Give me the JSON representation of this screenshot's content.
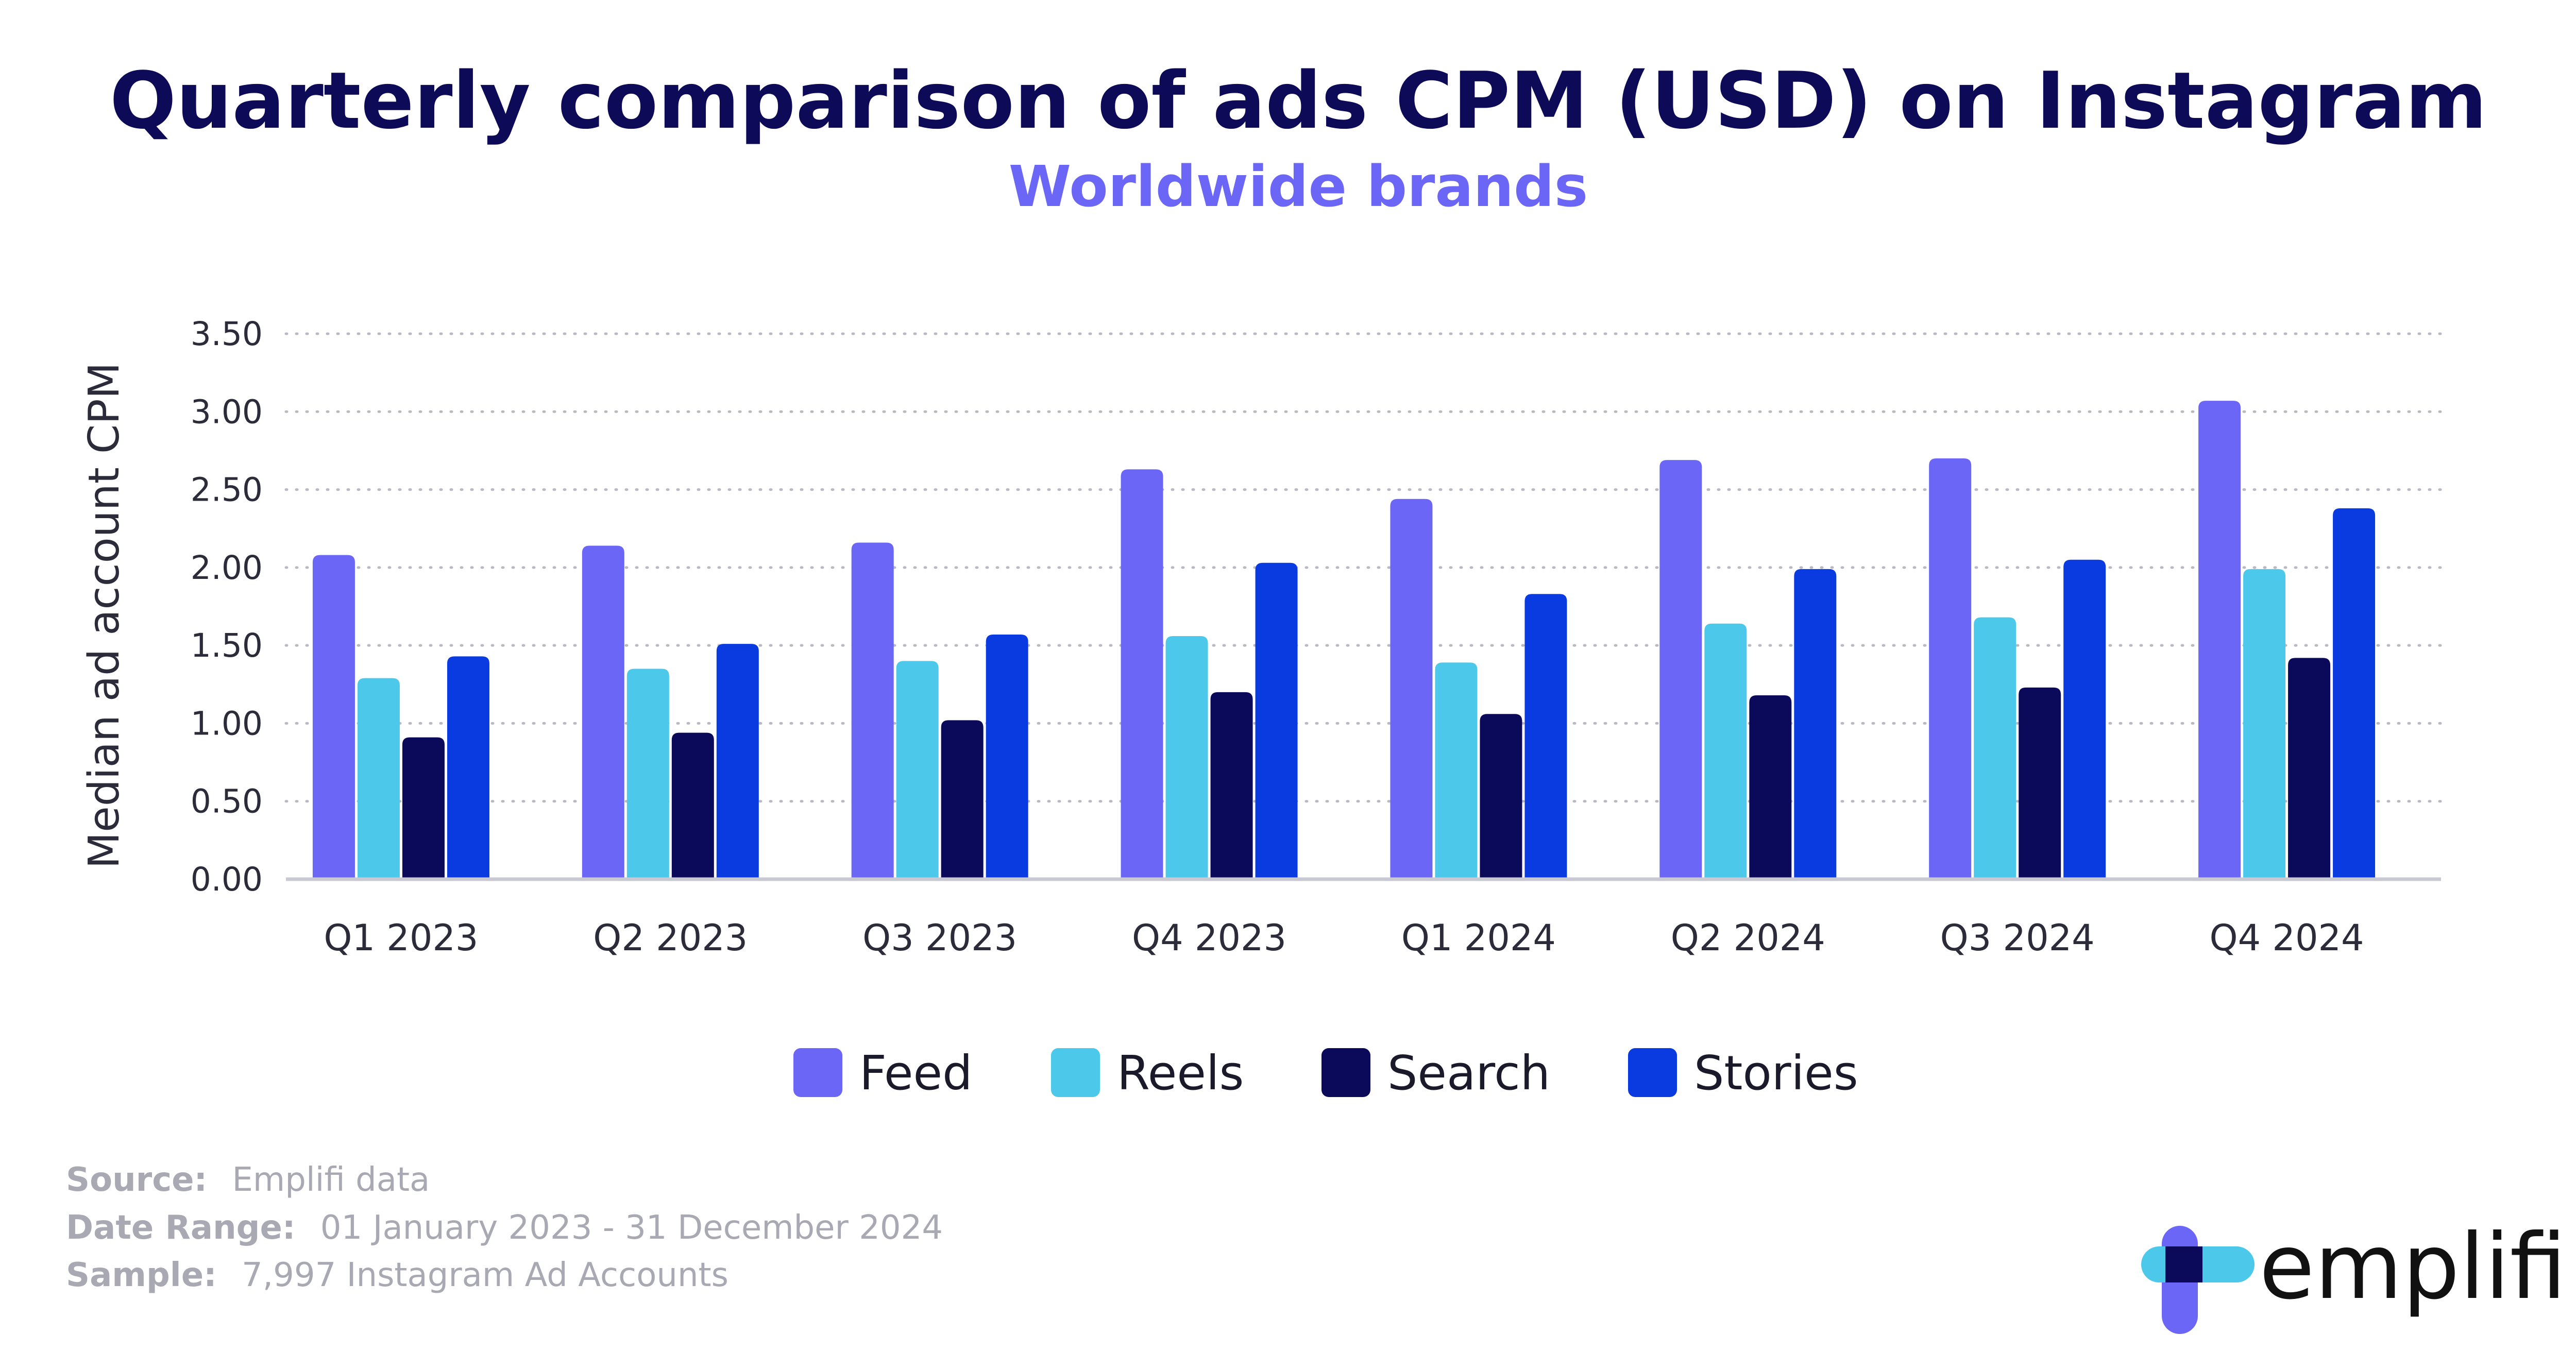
{
  "chart_data": {
    "type": "bar",
    "title": "Quarterly comparison of ads CPM (USD) on Instagram",
    "subtitle": "Worldwide brands",
    "xlabel": "",
    "ylabel": "Median ad account CPM",
    "ylim": [
      0,
      3.5
    ],
    "yticks": [
      "0.00",
      "0.50",
      "1.00",
      "1.50",
      "2.00",
      "2.50",
      "3.00",
      "3.50"
    ],
    "grid": true,
    "legend_position": "bottom",
    "categories": [
      "Q1 2023",
      "Q2 2023",
      "Q3 2023",
      "Q4 2023",
      "Q1 2024",
      "Q2 2024",
      "Q3 2024",
      "Q4 2024"
    ],
    "series": [
      {
        "name": "Feed",
        "color": "#6b66f6",
        "values": [
          2.08,
          2.14,
          2.16,
          2.63,
          2.44,
          2.69,
          2.7,
          3.07
        ]
      },
      {
        "name": "Reels",
        "color": "#4bc8ea",
        "values": [
          1.29,
          1.35,
          1.4,
          1.56,
          1.39,
          1.64,
          1.68,
          1.99
        ]
      },
      {
        "name": "Search",
        "color": "#0b0a5a",
        "values": [
          0.91,
          0.94,
          1.02,
          1.2,
          1.06,
          1.18,
          1.23,
          1.42
        ]
      },
      {
        "name": "Stories",
        "color": "#0a3be0",
        "values": [
          1.43,
          1.51,
          1.57,
          2.03,
          1.83,
          1.99,
          2.05,
          2.38
        ]
      }
    ]
  },
  "footer": {
    "source_label": "Source:",
    "source_value": "Emplifi data",
    "date_label": "Date Range:",
    "date_value": "01 January 2023 - 31 December 2024",
    "sample_label": "Sample:",
    "sample_value": "7,997 Instagram Ad Accounts"
  },
  "brand": {
    "name": "emplifi",
    "colors": [
      "#4bc8ea",
      "#6b66f6",
      "#0b0a5a"
    ]
  }
}
